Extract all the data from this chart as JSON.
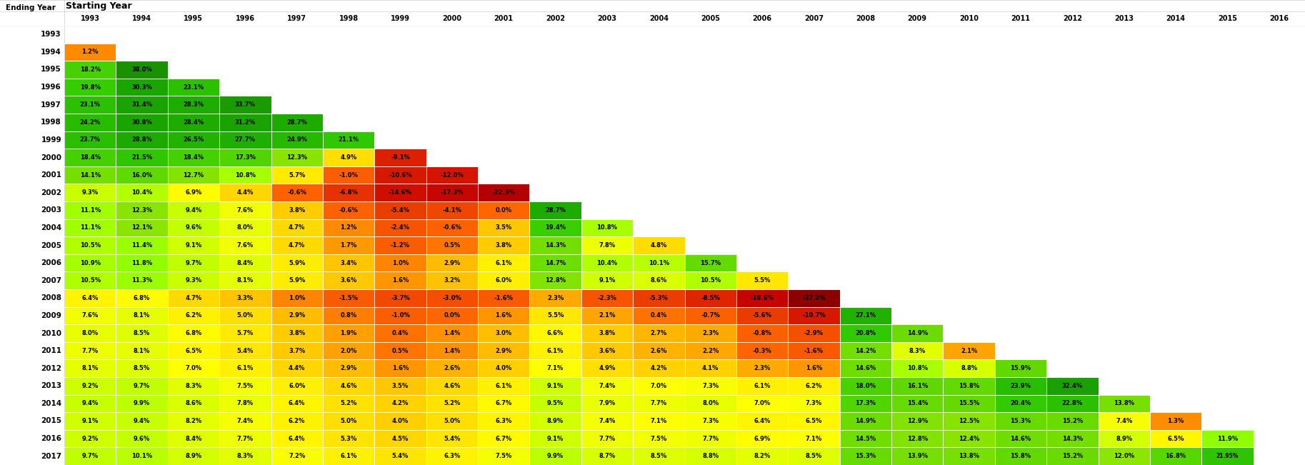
{
  "title": "Starting Year",
  "starting_years": [
    1993,
    1994,
    1995,
    1996,
    1997,
    1998,
    1999,
    2000,
    2001,
    2002,
    2003,
    2004,
    2005,
    2006,
    2007,
    2008,
    2009,
    2010,
    2011,
    2012,
    2013,
    2014,
    2015,
    2016
  ],
  "ending_years": [
    1993,
    1994,
    1995,
    1996,
    1997,
    1998,
    1999,
    2000,
    2001,
    2002,
    2003,
    2004,
    2005,
    2006,
    2007,
    2008,
    2009,
    2010,
    2011,
    2012,
    2013,
    2014,
    2015,
    2016,
    2017
  ],
  "data": {
    "1993": {
      "1993": null
    },
    "1994": {
      "1993": 1.2,
      "1994": null
    },
    "1995": {
      "1993": 18.2,
      "1994": 38.0,
      "1995": null
    },
    "1996": {
      "1993": 19.8,
      "1994": 30.3,
      "1995": 23.1,
      "1996": null
    },
    "1997": {
      "1993": 23.1,
      "1994": 31.4,
      "1995": 28.3,
      "1996": 33.7,
      "1997": null
    },
    "1998": {
      "1993": 24.2,
      "1994": 30.8,
      "1995": 28.4,
      "1996": 31.2,
      "1997": 28.7,
      "1998": null
    },
    "1999": {
      "1993": 23.7,
      "1994": 28.8,
      "1995": 26.5,
      "1996": 27.7,
      "1997": 24.9,
      "1998": 21.1,
      "1999": null
    },
    "2000": {
      "1993": 18.4,
      "1994": 21.5,
      "1995": 18.4,
      "1996": 17.3,
      "1997": 12.3,
      "1998": 4.9,
      "1999": -9.1,
      "2000": null
    },
    "2001": {
      "1993": 14.1,
      "1994": 16.0,
      "1995": 12.7,
      "1996": 10.8,
      "1997": 5.7,
      "1998": -1.0,
      "1999": -10.6,
      "2000": -12.0,
      "2001": null
    },
    "2002": {
      "1993": 9.3,
      "1994": 10.4,
      "1995": 6.9,
      "1996": 4.4,
      "1997": -0.6,
      "1998": -6.8,
      "1999": -14.6,
      "2000": -17.3,
      "2001": -22.3,
      "2002": null
    },
    "2003": {
      "1993": 11.1,
      "1994": 12.3,
      "1995": 9.4,
      "1996": 7.6,
      "1997": 3.8,
      "1998": -0.6,
      "1999": -5.4,
      "2000": -4.1,
      "2001": 0.0,
      "2002": 28.7,
      "2003": null
    },
    "2004": {
      "1993": 11.1,
      "1994": 12.1,
      "1995": 9.6,
      "1996": 8.0,
      "1997": 4.7,
      "1998": 1.2,
      "1999": -2.4,
      "2000": -0.6,
      "2001": 3.5,
      "2002": 19.4,
      "2003": 10.8,
      "2004": null
    },
    "2005": {
      "1993": 10.5,
      "1994": 11.4,
      "1995": 9.1,
      "1996": 7.6,
      "1997": 4.7,
      "1998": 1.7,
      "1999": -1.2,
      "2000": 0.5,
      "2001": 3.8,
      "2002": 14.3,
      "2003": 7.8,
      "2004": 4.8,
      "2005": null
    },
    "2006": {
      "1993": 10.9,
      "1994": 11.8,
      "1995": 9.7,
      "1996": 8.4,
      "1997": 5.9,
      "1998": 3.4,
      "1999": 1.0,
      "2000": 2.9,
      "2001": 6.1,
      "2002": 14.7,
      "2003": 10.4,
      "2004": 10.1,
      "2005": 15.7,
      "2006": null
    },
    "2007": {
      "1993": 10.5,
      "1994": 11.3,
      "1995": 9.3,
      "1996": 8.1,
      "1997": 5.9,
      "1998": 3.6,
      "1999": 1.6,
      "2000": 3.2,
      "2001": 6.0,
      "2002": 12.8,
      "2003": 9.1,
      "2004": 8.6,
      "2005": 10.5,
      "2006": 5.5,
      "2007": null
    },
    "2008": {
      "1993": 6.4,
      "1994": 6.8,
      "1995": 4.7,
      "1996": 3.3,
      "1997": 1.0,
      "1998": -1.5,
      "1999": -3.7,
      "2000": -3.0,
      "2001": -1.6,
      "2002": 2.3,
      "2003": -2.3,
      "2004": -5.3,
      "2005": -8.5,
      "2006": -18.6,
      "2007": -37.2,
      "2008": null
    },
    "2009": {
      "1993": 7.6,
      "1994": 8.1,
      "1995": 6.2,
      "1996": 5.0,
      "1997": 2.9,
      "1998": 0.8,
      "1999": -1.0,
      "2000": 0.0,
      "2001": 1.6,
      "2002": 5.5,
      "2003": 2.1,
      "2004": 0.4,
      "2005": -0.7,
      "2006": -5.6,
      "2007": -10.7,
      "2008": 27.1,
      "2009": null
    },
    "2010": {
      "1993": 8.0,
      "1994": 8.5,
      "1995": 6.8,
      "1996": 5.7,
      "1997": 3.8,
      "1998": 1.9,
      "1999": 0.4,
      "2000": 1.4,
      "2001": 3.0,
      "2002": 6.6,
      "2003": 3.8,
      "2004": 2.7,
      "2005": 2.3,
      "2006": -0.8,
      "2007": -2.9,
      "2008": 20.8,
      "2009": 14.9,
      "2010": null
    },
    "2011": {
      "1993": 7.7,
      "1994": 8.1,
      "1995": 6.5,
      "1996": 5.4,
      "1997": 3.7,
      "1998": 2.0,
      "1999": 0.5,
      "2000": 1.4,
      "2001": 2.9,
      "2002": 6.1,
      "2003": 3.6,
      "2004": 2.6,
      "2005": 2.2,
      "2006": -0.3,
      "2007": -1.6,
      "2008": 14.2,
      "2009": 8.3,
      "2010": 2.1,
      "2011": null
    },
    "2012": {
      "1993": 8.1,
      "1994": 8.5,
      "1995": 7.0,
      "1996": 6.1,
      "1997": 4.4,
      "1998": 2.9,
      "1999": 1.6,
      "2000": 2.6,
      "2001": 4.0,
      "2002": 7.1,
      "2003": 4.9,
      "2004": 4.2,
      "2005": 4.1,
      "2006": 2.3,
      "2007": 1.6,
      "2008": 14.6,
      "2009": 10.8,
      "2010": 8.8,
      "2011": 15.9,
      "2012": null
    },
    "2013": {
      "1993": 9.2,
      "1994": 9.7,
      "1995": 8.3,
      "1996": 7.5,
      "1997": 6.0,
      "1998": 4.6,
      "1999": 3.5,
      "2000": 4.6,
      "2001": 6.1,
      "2002": 9.1,
      "2003": 7.4,
      "2004": 7.0,
      "2005": 7.3,
      "2006": 6.1,
      "2007": 6.2,
      "2008": 18.0,
      "2009": 16.1,
      "2010": 15.8,
      "2011": 23.9,
      "2012": 32.4,
      "2013": null
    },
    "2014": {
      "1993": 9.4,
      "1994": 9.9,
      "1995": 8.6,
      "1996": 7.8,
      "1997": 6.4,
      "1998": 5.2,
      "1999": 4.2,
      "2000": 5.2,
      "2001": 6.7,
      "2002": 9.5,
      "2003": 7.9,
      "2004": 7.7,
      "2005": 8.0,
      "2006": 7.0,
      "2007": 7.3,
      "2008": 17.3,
      "2009": 15.4,
      "2010": 15.5,
      "2011": 20.4,
      "2012": 22.8,
      "2013": 13.8,
      "2014": null
    },
    "2015": {
      "1993": 9.1,
      "1994": 9.4,
      "1995": 8.2,
      "1996": 7.4,
      "1997": 6.2,
      "1998": 5.0,
      "1999": 4.0,
      "2000": 5.0,
      "2001": 6.3,
      "2002": 8.9,
      "2003": 7.4,
      "2004": 7.1,
      "2005": 7.3,
      "2006": 6.4,
      "2007": 6.5,
      "2008": 14.9,
      "2009": 12.9,
      "2010": 12.5,
      "2011": 15.3,
      "2012": 15.2,
      "2013": 7.4,
      "2014": 1.3,
      "2015": null
    },
    "2016": {
      "1993": 9.2,
      "1994": 9.6,
      "1995": 8.4,
      "1996": 7.7,
      "1997": 6.4,
      "1998": 5.3,
      "1999": 4.5,
      "2000": 5.4,
      "2001": 6.7,
      "2002": 9.1,
      "2003": 7.7,
      "2004": 7.5,
      "2005": 7.7,
      "2006": 6.9,
      "2007": 7.1,
      "2008": 14.5,
      "2009": 12.8,
      "2010": 12.4,
      "2011": 14.6,
      "2012": 14.3,
      "2013": 8.9,
      "2014": 6.5,
      "2015": 11.9,
      "2016": null
    },
    "2017": {
      "1993": 9.7,
      "1994": 10.1,
      "1995": 8.9,
      "1996": 8.3,
      "1997": 7.2,
      "1998": 6.1,
      "1999": 5.4,
      "2000": 6.3,
      "2001": 7.5,
      "2002": 9.9,
      "2003": 8.7,
      "2004": 8.5,
      "2005": 8.8,
      "2006": 8.2,
      "2007": 8.5,
      "2008": 15.3,
      "2009": 13.9,
      "2010": 13.8,
      "2011": 15.8,
      "2012": 15.2,
      "2013": 12.0,
      "2014": 16.8,
      "2015": 21.95,
      "2016": null
    }
  }
}
